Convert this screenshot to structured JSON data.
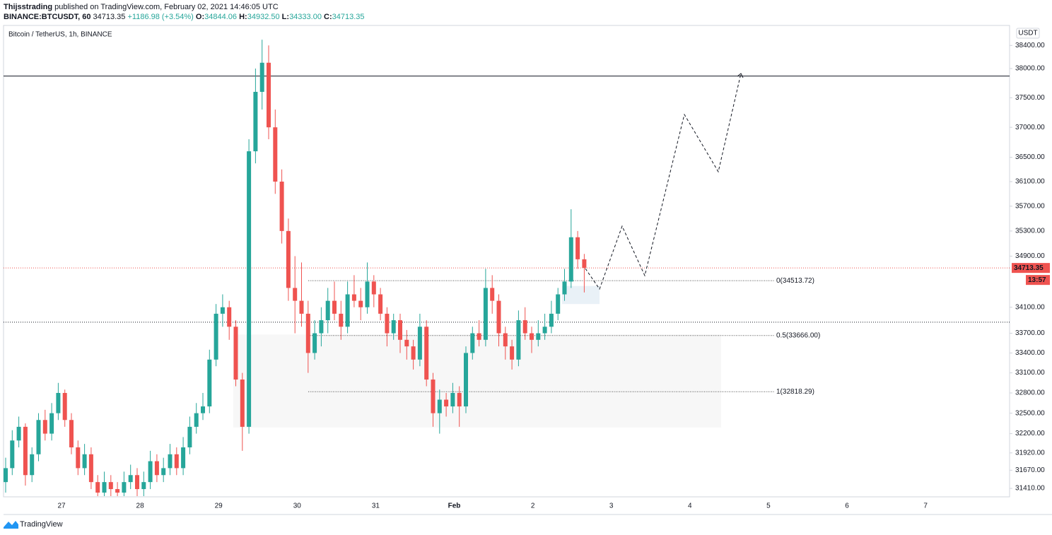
{
  "header": {
    "author": "Thijsstrading",
    "published": " published on TradingView.com, February 02, 2021 14:46:05 UTC",
    "symbol": "BINANCE:BTCUSDT, 60",
    "last": "34713.35",
    "change": "+1186.98 (+3.54%)",
    "open": "O:",
    "open_value": "34844.06",
    "high": "H:",
    "high_value": "34932.50",
    "low": "L:",
    "low_value": "34333.00",
    "close": "C:",
    "close_value": "34713.35"
  },
  "footer": {
    "brand": "TradingView"
  },
  "chart_data": {
    "type": "candlestick",
    "title": "Bitcoin / TetherUS, 1h, BINANCE",
    "currency": "USDT",
    "log_scale": true,
    "ylim": [
      31290,
      38750
    ],
    "yticks": [
      {
        "value": 38400,
        "label": "38400.00"
      },
      {
        "value": 38000,
        "label": "38000.00"
      },
      {
        "value": 37500,
        "label": "37500.00"
      },
      {
        "value": 37000,
        "label": "37000.00"
      },
      {
        "value": 36500,
        "label": "36500.00"
      },
      {
        "value": 36100,
        "label": "36100.00"
      },
      {
        "value": 35700,
        "label": "35700.00"
      },
      {
        "value": 35300,
        "label": "35300.00"
      },
      {
        "value": 34900,
        "label": "34900.00"
      },
      {
        "value": 34100,
        "label": "34100.00"
      },
      {
        "value": 33700,
        "label": "33700.00"
      },
      {
        "value": 33400,
        "label": "33400.00"
      },
      {
        "value": 33100,
        "label": "33100.00"
      },
      {
        "value": 32800,
        "label": "32800.00"
      },
      {
        "value": 32500,
        "label": "32500.00"
      },
      {
        "value": 32200,
        "label": "32200.00"
      },
      {
        "value": 31920,
        "label": "31920.00"
      },
      {
        "value": 31670,
        "label": "31670.00"
      },
      {
        "value": 31410,
        "label": "31410.00"
      }
    ],
    "xticks": [
      "27",
      "28",
      "29",
      "30",
      "31",
      "Feb",
      "2",
      "3",
      "4",
      "5",
      "6",
      "7"
    ],
    "up_color": "#26a69a",
    "down_color": "#ef5350",
    "candles": [
      [
        31500,
        31850,
        31350,
        31700
      ],
      [
        31700,
        32250,
        31600,
        32100
      ],
      [
        32100,
        32450,
        32000,
        32300
      ],
      [
        32300,
        32350,
        31450,
        31600
      ],
      [
        31600,
        32000,
        31500,
        31900
      ],
      [
        31900,
        32500,
        31800,
        32400
      ],
      [
        32400,
        32550,
        32100,
        32200
      ],
      [
        32200,
        32650,
        32100,
        32500
      ],
      [
        32500,
        32950,
        32400,
        32800
      ],
      [
        32800,
        32850,
        32300,
        32400
      ],
      [
        32400,
        32500,
        31900,
        32000
      ],
      [
        32000,
        32100,
        31600,
        31700
      ],
      [
        31700,
        32050,
        31600,
        31900
      ],
      [
        31900,
        32000,
        31400,
        31500
      ],
      [
        31500,
        31600,
        31300,
        31350
      ],
      [
        31350,
        31650,
        31300,
        31500
      ],
      [
        31500,
        31600,
        31300,
        31400
      ],
      [
        31400,
        31500,
        31300,
        31350
      ],
      [
        31350,
        31650,
        31300,
        31500
      ],
      [
        31500,
        31750,
        31400,
        31600
      ],
      [
        31600,
        31700,
        31300,
        31400
      ],
      [
        31400,
        31650,
        31300,
        31500
      ],
      [
        31500,
        31950,
        31400,
        31800
      ],
      [
        31800,
        31900,
        31500,
        31600
      ],
      [
        31600,
        31850,
        31500,
        31700
      ],
      [
        31700,
        32050,
        31600,
        31900
      ],
      [
        31900,
        32000,
        31600,
        31700
      ],
      [
        31700,
        32150,
        31600,
        32000
      ],
      [
        32000,
        32450,
        31900,
        32300
      ],
      [
        32300,
        32650,
        32200,
        32500
      ],
      [
        32500,
        32800,
        32400,
        32600
      ],
      [
        32600,
        33450,
        32500,
        33300
      ],
      [
        33300,
        34150,
        33200,
        34000
      ],
      [
        34000,
        34300,
        33800,
        34100
      ],
      [
        34100,
        34200,
        33600,
        33800
      ],
      [
        33800,
        33900,
        32900,
        33000
      ],
      [
        33000,
        33100,
        31950,
        32300
      ],
      [
        32300,
        36800,
        32200,
        36600
      ],
      [
        36600,
        38000,
        36400,
        37600
      ],
      [
        37600,
        38500,
        37300,
        38100
      ],
      [
        38100,
        38400,
        36800,
        37000
      ],
      [
        37000,
        37300,
        35900,
        36100
      ],
      [
        36100,
        36300,
        35100,
        35300
      ],
      [
        35300,
        35500,
        34200,
        34400
      ],
      [
        34400,
        34900,
        33700,
        34200
      ],
      [
        34200,
        34800,
        33800,
        34000
      ],
      [
        34000,
        34200,
        33100,
        33400
      ],
      [
        33400,
        33900,
        33300,
        33700
      ],
      [
        33700,
        34100,
        33500,
        33900
      ],
      [
        33900,
        34400,
        33700,
        34200
      ],
      [
        34200,
        34500,
        33900,
        34000
      ],
      [
        34000,
        34200,
        33600,
        33800
      ],
      [
        33800,
        34500,
        33700,
        34300
      ],
      [
        34300,
        34600,
        34100,
        34200
      ],
      [
        34200,
        34400,
        33900,
        34100
      ],
      [
        34100,
        34800,
        34000,
        34500
      ],
      [
        34500,
        34600,
        34100,
        34300
      ],
      [
        34300,
        34400,
        33900,
        34000
      ],
      [
        34000,
        34100,
        33500,
        33700
      ],
      [
        33700,
        34000,
        33600,
        33900
      ],
      [
        33900,
        34000,
        33400,
        33600
      ],
      [
        33600,
        33750,
        33300,
        33500
      ],
      [
        33500,
        33600,
        33150,
        33300
      ],
      [
        33300,
        34000,
        33200,
        33800
      ],
      [
        33800,
        33900,
        32900,
        33000
      ],
      [
        33000,
        33100,
        32300,
        32500
      ],
      [
        32500,
        32850,
        32200,
        32700
      ],
      [
        32700,
        32800,
        32450,
        32600
      ],
      [
        32600,
        32950,
        32500,
        32800
      ],
      [
        32800,
        32900,
        32300,
        32600
      ],
      [
        32600,
        33500,
        32500,
        33400
      ],
      [
        33400,
        33800,
        33300,
        33700
      ],
      [
        33700,
        33900,
        33500,
        33600
      ],
      [
        33600,
        34700,
        33500,
        34400
      ],
      [
        34400,
        34600,
        34000,
        34200
      ],
      [
        34200,
        34300,
        33500,
        33700
      ],
      [
        33700,
        33800,
        33300,
        33500
      ],
      [
        33500,
        33600,
        33150,
        33300
      ],
      [
        33300,
        34050,
        33200,
        33900
      ],
      [
        33900,
        34100,
        33600,
        33700
      ],
      [
        33700,
        33800,
        33400,
        33600
      ],
      [
        33600,
        33900,
        33500,
        33700
      ],
      [
        33700,
        34000,
        33600,
        33800
      ],
      [
        33800,
        34200,
        33700,
        34000
      ],
      [
        34000,
        34400,
        33900,
        34300
      ],
      [
        34300,
        34700,
        34200,
        34500
      ],
      [
        34500,
        35650,
        34400,
        35200
      ],
      [
        35200,
        35300,
        34700,
        34850
      ],
      [
        34850,
        34935,
        34330,
        34715
      ]
    ],
    "fib_levels": [
      {
        "value": 34513.72,
        "label": "0(34513.72)"
      },
      {
        "value": 33666.0,
        "label": "0.5(33666.00)"
      },
      {
        "value": 32818.29,
        "label": "1(32818.29)"
      }
    ],
    "resistance": 37870,
    "support": 33870,
    "last_price": {
      "value": 34713.35,
      "label": "34713.35"
    },
    "countdown": "13:57",
    "zones": [
      [
        33680,
        32290
      ],
      [
        34430,
        34150
      ]
    ]
  }
}
